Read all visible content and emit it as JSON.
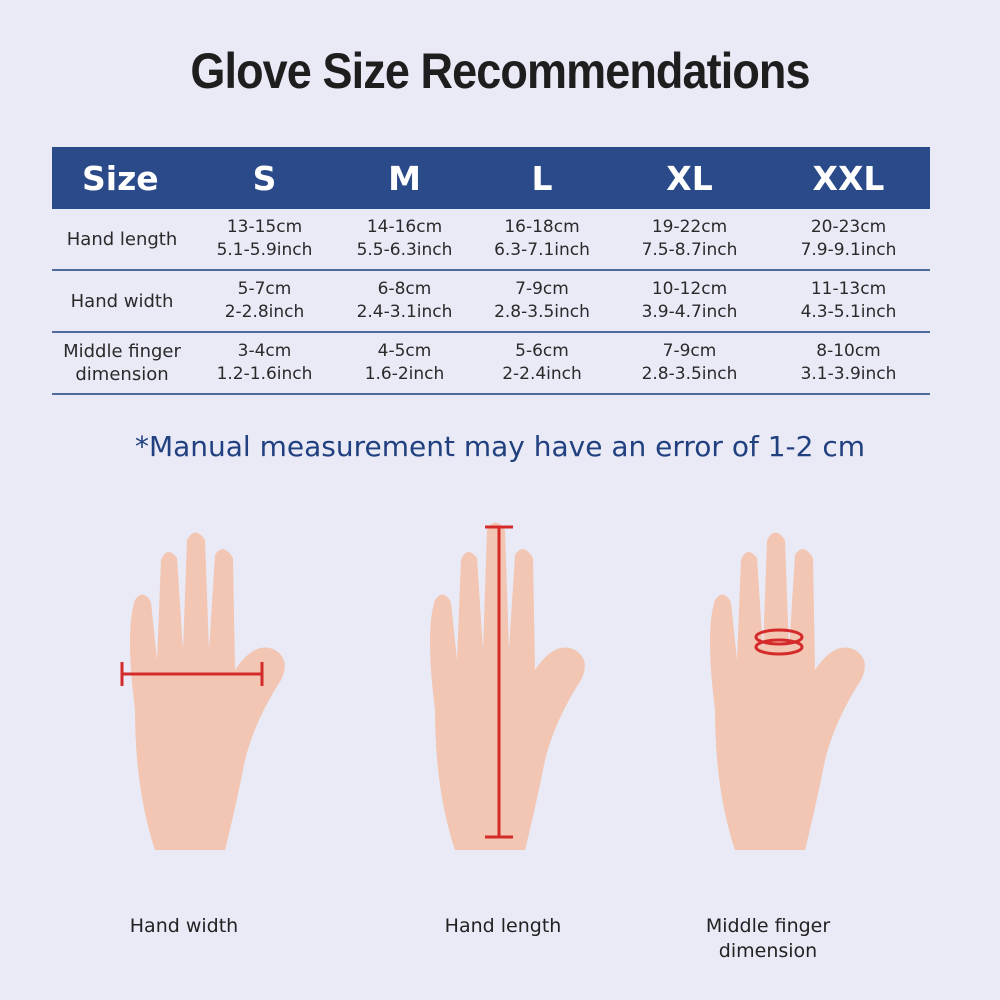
{
  "title": "Glove Size Recommendations",
  "table": {
    "headers": [
      "Size",
      "S",
      "M",
      "L",
      "XL",
      "XXL"
    ],
    "rows": [
      {
        "label": "Hand length",
        "cells": [
          [
            "13-15cm",
            "5.1-5.9inch"
          ],
          [
            "14-16cm",
            "5.5-6.3inch"
          ],
          [
            "16-18cm",
            "6.3-7.1inch"
          ],
          [
            "19-22cm",
            "7.5-8.7inch"
          ],
          [
            "20-23cm",
            "7.9-9.1inch"
          ]
        ]
      },
      {
        "label": "Hand width",
        "cells": [
          [
            "5-7cm",
            "2-2.8inch"
          ],
          [
            "6-8cm",
            "2.4-3.1inch"
          ],
          [
            "7-9cm",
            "2.8-3.5inch"
          ],
          [
            "10-12cm",
            "3.9-4.7inch"
          ],
          [
            "11-13cm",
            "4.3-5.1inch"
          ]
        ]
      },
      {
        "label": "Middle finger dimension",
        "cells": [
          [
            "3-4cm",
            "1.2-1.6inch"
          ],
          [
            "4-5cm",
            "1.6-2inch"
          ],
          [
            "5-6cm",
            "2-2.4inch"
          ],
          [
            "7-9cm",
            "2.8-3.5inch"
          ],
          [
            "8-10cm",
            "3.1-3.9inch"
          ]
        ]
      }
    ]
  },
  "note": "*Manual measurement may have an error of 1-2 cm",
  "illustrations": [
    {
      "caption": "Hand width",
      "marker": "width-line"
    },
    {
      "caption": "Hand length",
      "marker": "length-line"
    },
    {
      "caption": "Middle finger dimension",
      "marker": "finger-ring"
    }
  ],
  "colors": {
    "header": "#2b4a89",
    "note": "#21407f",
    "marker": "#d42a2a",
    "skin": "#f2c6b2"
  }
}
